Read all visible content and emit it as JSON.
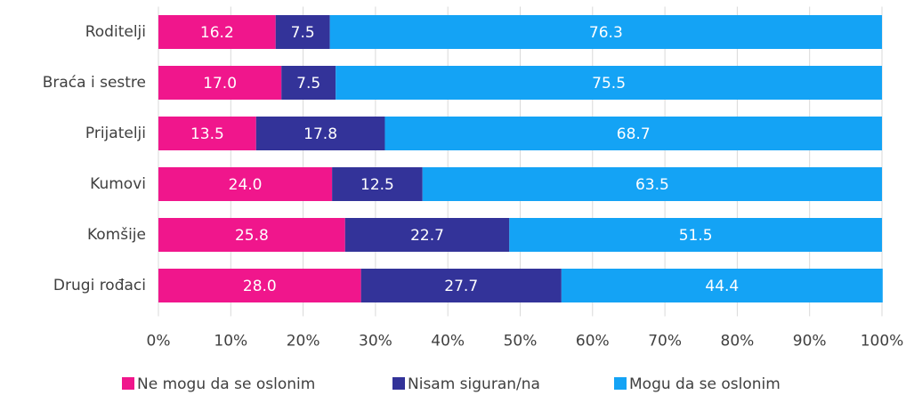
{
  "chart_data": {
    "type": "stacked_barh",
    "categories": [
      "Roditelji",
      "Braća i sestre",
      "Prijatelji",
      "Kumovi",
      "Komšije",
      "Drugi rođaci"
    ],
    "series": [
      {
        "name": "Ne mogu da se oslonim",
        "color": "#f0168c",
        "values": [
          16.2,
          17.0,
          13.5,
          24.0,
          25.8,
          28.0
        ],
        "value_labels": [
          "16.2",
          "17.0",
          "13.5",
          "24.0",
          "25.8",
          "28.0"
        ]
      },
      {
        "name": "Nisam siguran/na",
        "color": "#333399",
        "values": [
          7.5,
          7.5,
          17.8,
          12.5,
          22.7,
          27.7
        ],
        "value_labels": [
          "7.5",
          "7.5",
          "17.8",
          "12.5",
          "22.7",
          "27.7"
        ]
      },
      {
        "name": "Mogu da se oslonim",
        "color": "#14a3f5",
        "values": [
          76.3,
          75.5,
          68.7,
          63.5,
          51.5,
          44.4
        ],
        "value_labels": [
          "76.3",
          "75.5",
          "68.7",
          "63.5",
          "51.5",
          "44.4"
        ]
      }
    ],
    "xlim": [
      0,
      100
    ],
    "xticks": [
      {
        "value": 0,
        "label": "0%"
      },
      {
        "value": 10,
        "label": "10%"
      },
      {
        "value": 20,
        "label": "20%"
      },
      {
        "value": 30,
        "label": "30%"
      },
      {
        "value": 40,
        "label": "40%"
      },
      {
        "value": 50,
        "label": "50%"
      },
      {
        "value": 60,
        "label": "60%"
      },
      {
        "value": 70,
        "label": "70%"
      },
      {
        "value": 80,
        "label": "80%"
      },
      {
        "value": 90,
        "label": "90%"
      },
      {
        "value": 100,
        "label": "100%"
      }
    ],
    "grid": true,
    "legend": "bottom"
  }
}
